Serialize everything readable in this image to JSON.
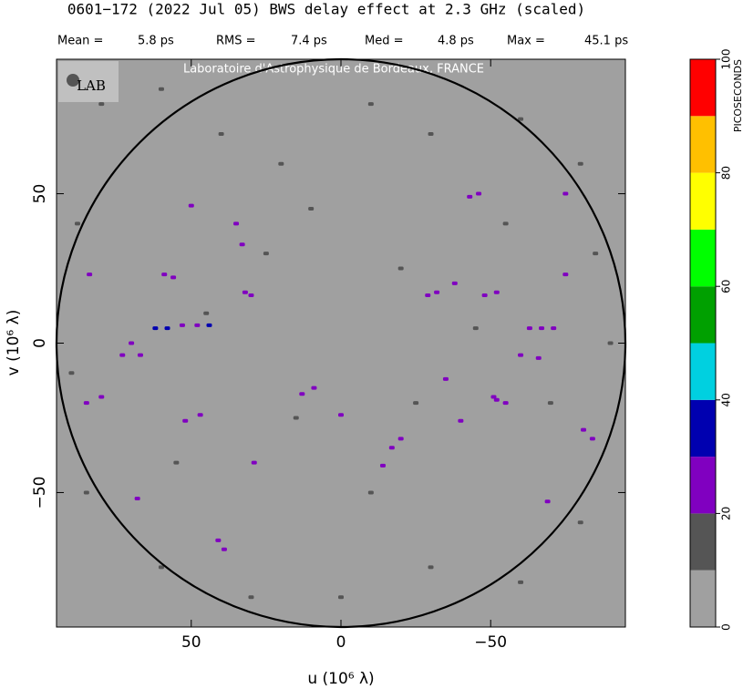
{
  "chart_data": {
    "type": "scatter",
    "title": "0601−172  (2022 Jul 05)   BWS delay effect at  2.3 GHz (scaled)",
    "stats": [
      {
        "label": "Mean =",
        "value": "5.8 ps"
      },
      {
        "label": "RMS =",
        "value": "7.4 ps"
      },
      {
        "label": "Med =",
        "value": "4.8 ps"
      },
      {
        "label": "Max =",
        "value": "45.1 ps"
      }
    ],
    "watermark": "Laboratoire d'Astrophysique de Bordeaux, FRANCE",
    "logo": "LAB",
    "x_label": "u  (10⁶ λ)",
    "y_label": "v  (10⁶ λ)",
    "xlim": [
      95,
      -95
    ],
    "ylim": [
      -95,
      95
    ],
    "xticks": [
      50,
      0,
      {
        "value": -50,
        "label": "−50"
      }
    ],
    "yticks": [
      {
        "value": -50,
        "label": "−50"
      },
      0,
      50
    ],
    "background_color": "#a0a0a0",
    "x": [
      62,
      58,
      53,
      48,
      44,
      70,
      67,
      73,
      -63,
      -67,
      -71,
      -60,
      -66,
      -51,
      -52,
      -55,
      -43,
      -46,
      -75,
      35,
      33,
      50,
      52,
      47,
      41,
      39,
      -14,
      -17,
      -20,
      -40,
      -29,
      -32,
      -38,
      -48,
      -52,
      32,
      30,
      59,
      56,
      85,
      80,
      -81,
      -84,
      68,
      -69,
      13,
      9,
      0,
      -35,
      84,
      -75,
      29,
      80,
      60,
      40,
      20,
      -10,
      -30,
      -60,
      -80,
      -85,
      -90,
      -70,
      -80,
      -60,
      -30,
      0,
      30,
      60,
      85,
      90,
      88,
      25,
      -20,
      15,
      -25,
      45,
      -45,
      10,
      -10,
      55,
      -55
    ],
    "y": [
      5,
      5,
      6,
      6,
      6,
      0,
      -4,
      -4,
      5,
      5,
      5,
      -4,
      -5,
      -18,
      -19,
      -20,
      49,
      50,
      50,
      40,
      33,
      46,
      -26,
      -24,
      -66,
      -69,
      -41,
      -35,
      -32,
      -26,
      16,
      17,
      20,
      16,
      17,
      17,
      16,
      23,
      22,
      -20,
      -18,
      -29,
      -32,
      -52,
      -53,
      -17,
      -15,
      -24,
      -12,
      23,
      23,
      -40,
      80,
      85,
      70,
      60,
      80,
      70,
      75,
      60,
      30,
      0,
      -20,
      -60,
      -80,
      -75,
      -85,
      -85,
      -75,
      -50,
      -10,
      40,
      30,
      25,
      -25,
      -20,
      10,
      5,
      45,
      -50,
      -40,
      40
    ],
    "values": [
      35,
      35,
      25,
      25,
      35,
      25,
      25,
      25,
      25,
      25,
      25,
      25,
      25,
      25,
      25,
      25,
      25,
      25,
      25,
      25,
      25,
      25,
      25,
      25,
      25,
      25,
      25,
      25,
      25,
      25,
      25,
      25,
      25,
      25,
      25,
      25,
      25,
      25,
      25,
      25,
      25,
      25,
      25,
      25,
      25,
      25,
      25,
      25,
      25,
      25,
      25,
      25,
      15,
      15,
      15,
      15,
      15,
      15,
      15,
      15,
      15,
      15,
      15,
      15,
      15,
      15,
      15,
      15,
      15,
      15,
      15,
      15,
      15,
      15,
      15,
      15,
      15,
      15,
      15,
      15,
      15,
      15
    ],
    "colorbar": {
      "label": "PICOSECONDS",
      "levels": [
        0,
        10,
        20,
        30,
        40,
        50,
        60,
        70,
        80,
        90,
        100
      ],
      "colors": [
        "#a0a0a0",
        "#555555",
        "#8000c0",
        "#0000b0",
        "#00d0e0",
        "#00a000",
        "#00ff00",
        "#ffff00",
        "#ffc000",
        "#ff0000"
      ],
      "ticks": [
        0,
        20,
        40,
        60,
        80,
        100
      ]
    }
  }
}
